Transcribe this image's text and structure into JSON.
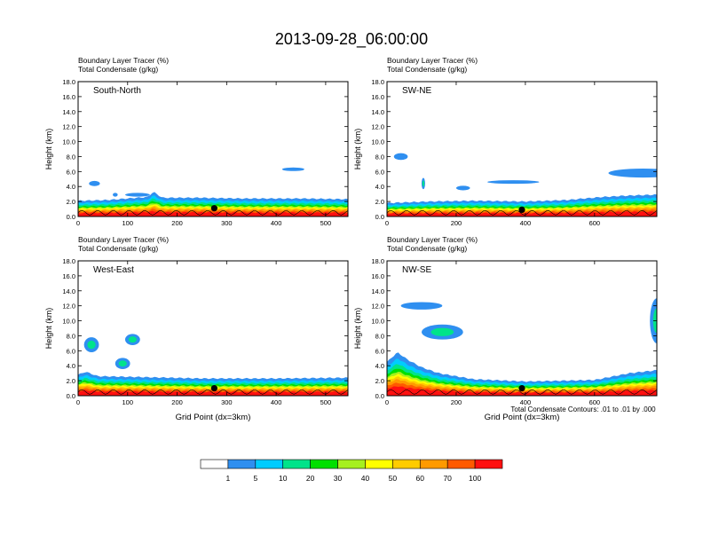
{
  "figure": {
    "title": "2013-09-28_06:00:00",
    "contour_note": "Total Condensate Contours: .01 to .01 by .000"
  },
  "colors": {
    "bins": [
      "#ffffff",
      "#2f8ff0",
      "#00ccff",
      "#00e38a",
      "#00e000",
      "#a6f01e",
      "#ffff00",
      "#ffcc00",
      "#ff9a00",
      "#ff5a00",
      "#ff1010"
    ],
    "contour": "#000000",
    "axis": "#000000"
  },
  "chart_data": [
    {
      "type": "heatmap",
      "panel": "South-North",
      "header_lines": [
        "Boundary Layer Tracer   (%)",
        "Total Condensate   (g/kg)"
      ],
      "ylabel": "Height (km)",
      "xlabel": "",
      "xlim": [
        0,
        545
      ],
      "ylim": [
        0,
        18
      ],
      "xticks": [
        0,
        100,
        200,
        300,
        400,
        500
      ],
      "yticks": [
        "0.0",
        "2.0",
        "4.0",
        "6.0",
        "8.0",
        "10.0",
        "12.0",
        "14.0",
        "16.0",
        "18.0"
      ],
      "marker": {
        "x": 275,
        "y": 1.1
      },
      "top_profile_km": [
        [
          0,
          2.1
        ],
        [
          60,
          2.2
        ],
        [
          140,
          2.6
        ],
        [
          152,
          3.3
        ],
        [
          170,
          2.5
        ],
        [
          250,
          2.5
        ],
        [
          330,
          2.4
        ],
        [
          450,
          2.4
        ],
        [
          545,
          2.3
        ]
      ],
      "upper_clouds": [
        {
          "x": 22,
          "y": 4.4,
          "w": 22,
          "h": 0.7
        },
        {
          "x": 70,
          "y": 2.9,
          "w": 10,
          "h": 0.5
        },
        {
          "x": 95,
          "y": 2.9,
          "w": 50,
          "h": 0.5
        },
        {
          "x": 412,
          "y": 6.3,
          "w": 45,
          "h": 0.35
        }
      ]
    },
    {
      "type": "heatmap",
      "panel": "SW-NE",
      "header_lines": [
        "Boundary Layer Tracer   (%)",
        "Total Condensate   (g/kg)"
      ],
      "ylabel": "Height (km)",
      "xlabel": "",
      "xlim": [
        0,
        780
      ],
      "ylim": [
        0,
        18
      ],
      "xticks": [
        0,
        200,
        400,
        600
      ],
      "yticks": [
        "0.0",
        "2.0",
        "4.0",
        "6.0",
        "8.0",
        "10.0",
        "12.0",
        "14.0",
        "16.0",
        "18.0"
      ],
      "marker": {
        "x": 390,
        "y": 0.9
      },
      "top_profile_km": [
        [
          0,
          1.8
        ],
        [
          120,
          2.0
        ],
        [
          250,
          2.1
        ],
        [
          400,
          2.0
        ],
        [
          520,
          2.2
        ],
        [
          620,
          2.6
        ],
        [
          700,
          2.8
        ],
        [
          780,
          2.9
        ]
      ],
      "upper_clouds": [
        {
          "x": 20,
          "y": 8.0,
          "w": 40,
          "h": 0.9
        },
        {
          "x": 100,
          "y": 4.4,
          "w": 10,
          "h": 1.5
        },
        {
          "x": 200,
          "y": 3.8,
          "w": 40,
          "h": 0.6
        },
        {
          "x": 290,
          "y": 4.6,
          "w": 150,
          "h": 0.35
        },
        {
          "x": 640,
          "y": 5.8,
          "w": 200,
          "h": 1.2
        }
      ]
    },
    {
      "type": "heatmap",
      "panel": "West-East",
      "header_lines": [
        "Boundary Layer Tracer   (%)",
        "Total Condensate   (g/kg)"
      ],
      "ylabel": "Height (km)",
      "xlabel": "Grid Point (dx=3km)",
      "xlim": [
        0,
        545
      ],
      "ylim": [
        0,
        18
      ],
      "xticks": [
        0,
        100,
        200,
        300,
        400,
        500
      ],
      "yticks": [
        "0.0",
        "2.0",
        "4.0",
        "6.0",
        "8.0",
        "10.0",
        "12.0",
        "14.0",
        "16.0",
        "18.0"
      ],
      "marker": {
        "x": 275,
        "y": 1.0
      },
      "top_profile_km": [
        [
          0,
          2.8
        ],
        [
          15,
          3.2
        ],
        [
          40,
          2.6
        ],
        [
          120,
          2.5
        ],
        [
          250,
          2.3
        ],
        [
          400,
          2.3
        ],
        [
          545,
          2.4
        ]
      ],
      "upper_clouds": [
        {
          "x": 12,
          "y": 6.8,
          "w": 30,
          "h": 2.0
        },
        {
          "x": 75,
          "y": 4.3,
          "w": 30,
          "h": 1.5
        },
        {
          "x": 95,
          "y": 7.5,
          "w": 30,
          "h": 1.5
        }
      ]
    },
    {
      "type": "heatmap",
      "panel": "NW-SE",
      "header_lines": [
        "Boundary Layer Tracer   (%)",
        "Total Condensate   (g/kg)"
      ],
      "ylabel": "Height (km)",
      "xlabel": "Grid Point (dx=3km)",
      "xlim": [
        0,
        780
      ],
      "ylim": [
        0,
        18
      ],
      "xticks": [
        0,
        200,
        400,
        600
      ],
      "yticks": [
        "0.0",
        "2.0",
        "4.0",
        "6.0",
        "8.0",
        "10.0",
        "12.0",
        "14.0",
        "16.0",
        "18.0"
      ],
      "marker": {
        "x": 390,
        "y": 1.0
      },
      "top_profile_km": [
        [
          0,
          4.5
        ],
        [
          30,
          5.8
        ],
        [
          60,
          4.8
        ],
        [
          100,
          3.8
        ],
        [
          150,
          3.0
        ],
        [
          250,
          2.2
        ],
        [
          400,
          1.9
        ],
        [
          600,
          2.1
        ],
        [
          700,
          3.0
        ],
        [
          780,
          3.4
        ]
      ],
      "upper_clouds": [
        {
          "x": 40,
          "y": 12.0,
          "w": 120,
          "h": 1.0
        },
        {
          "x": 100,
          "y": 8.5,
          "w": 120,
          "h": 2.0
        },
        {
          "x": 760,
          "y": 10.0,
          "w": 40,
          "h": 6.0
        }
      ]
    }
  ],
  "colorbar": {
    "labels": [
      "1",
      "5",
      "10",
      "20",
      "30",
      "40",
      "50",
      "60",
      "70",
      "100"
    ]
  }
}
